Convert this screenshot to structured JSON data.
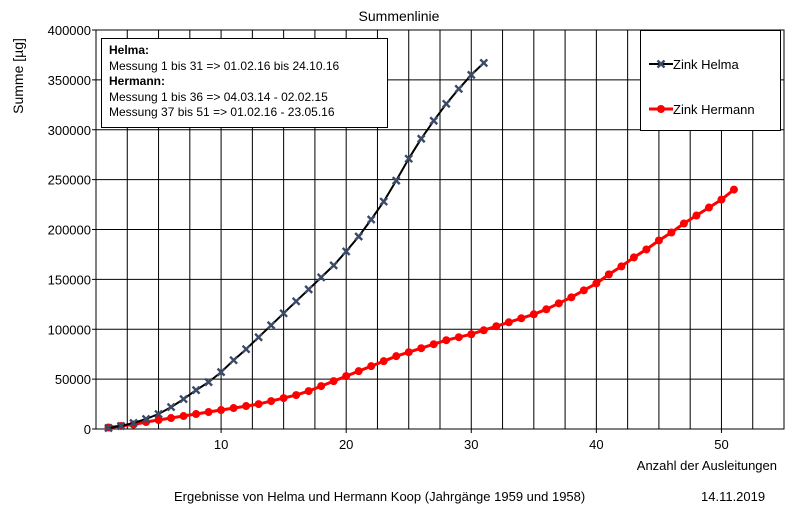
{
  "chart_data": {
    "type": "line",
    "title": "Summenlinie",
    "xlabel": "Anzahl der Ausleitungen",
    "ylabel": "Summe [µg]",
    "xlim": [
      0,
      55
    ],
    "ylim": [
      0,
      400000
    ],
    "x_ticks": [
      "10",
      "20",
      "30",
      "40",
      "50"
    ],
    "y_ticks": [
      "0",
      "50000",
      "100000",
      "150000",
      "200000",
      "250000",
      "300000",
      "350000",
      "400000"
    ],
    "grid": true,
    "legend_position": "top-right",
    "series": [
      {
        "name": "Zink Helma",
        "color": "#000000",
        "marker_color": "#3b4a66",
        "marker": "x",
        "x": [
          1,
          2,
          3,
          4,
          5,
          6,
          7,
          8,
          9,
          10,
          11,
          12,
          13,
          14,
          15,
          16,
          17,
          18,
          19,
          20,
          21,
          22,
          23,
          24,
          25,
          26,
          27,
          28,
          29,
          30,
          31
        ],
        "y": [
          1000,
          3000,
          6000,
          10000,
          15000,
          22000,
          30000,
          39000,
          47000,
          57000,
          69000,
          80000,
          92000,
          104000,
          116000,
          128000,
          140000,
          152000,
          164000,
          178000,
          193000,
          210000,
          228000,
          249000,
          271000,
          291000,
          309000,
          326000,
          341000,
          355000,
          367000
        ]
      },
      {
        "name": "Zink Hermann",
        "color": "#ff0000",
        "marker_color": "#ff0000",
        "marker": "circle",
        "x": [
          1,
          2,
          3,
          4,
          5,
          6,
          7,
          8,
          9,
          10,
          11,
          12,
          13,
          14,
          15,
          16,
          17,
          18,
          19,
          20,
          21,
          22,
          23,
          24,
          25,
          26,
          27,
          28,
          29,
          30,
          31,
          32,
          33,
          34,
          35,
          36,
          37,
          38,
          39,
          40,
          41,
          42,
          43,
          44,
          45,
          46,
          47,
          48,
          49,
          50,
          51
        ],
        "y": [
          1500,
          3000,
          4500,
          7000,
          9000,
          11000,
          13000,
          15000,
          17000,
          19000,
          21000,
          23000,
          25000,
          28000,
          31000,
          34000,
          38000,
          43000,
          48000,
          53000,
          58000,
          63000,
          68000,
          73000,
          77000,
          81000,
          85000,
          89000,
          92000,
          95000,
          99000,
          103000,
          107000,
          111000,
          115000,
          120000,
          126000,
          132000,
          139000,
          146000,
          155000,
          163000,
          172000,
          180000,
          189000,
          197000,
          206000,
          214000,
          222000,
          230000,
          240000
        ]
      }
    ]
  },
  "note": {
    "helma_header": "Helma:",
    "helma_line": "Messung 1 bis 31 => 01.02.16 bis 24.10.16",
    "hermann_header": "Hermann:",
    "hermann_line1": "Messung 1 bis 36 => 04.03.14 - 02.02.15",
    "hermann_line2": "Messung 37 bis 51 => 01.02.16 - 23.05.16"
  },
  "footer": {
    "text": "Ergebnisse von Helma und Hermann Koop (Jahrgänge 1959 und 1958)",
    "date": "14.11.2019"
  }
}
